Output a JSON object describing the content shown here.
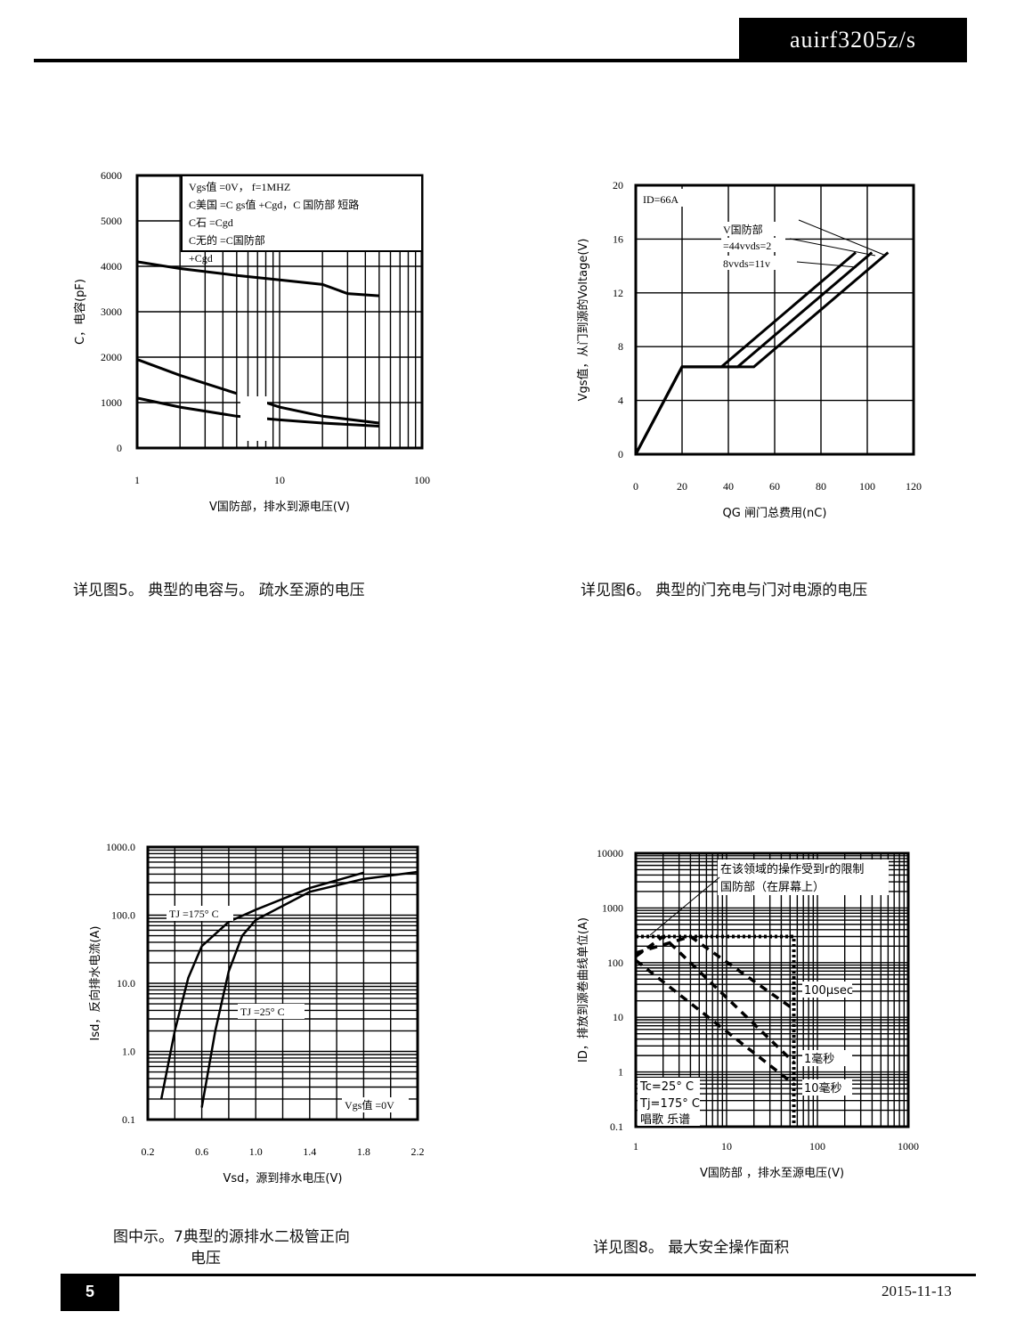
{
  "header": {
    "part_number": "auirf3205z/s"
  },
  "footer": {
    "page": "5",
    "date": "2015-11-13"
  },
  "captions": {
    "fig5": "详见图5。  典型的电容与。  疏水至源的电压",
    "fig6": "详见图6。  典型的门充电与门对电源的电压",
    "fig7_line1": "图中示。7典型的源排水二极管正向",
    "fig7_line2": "电压",
    "fig8": "详见图8。  最大安全操作面积"
  },
  "chart_data": [
    {
      "type": "line",
      "xscale": "log",
      "xlim": [
        1,
        100
      ],
      "ylim": [
        0,
        6000
      ],
      "grid": true,
      "xticks": [
        "1",
        "10",
        "100"
      ],
      "yticks": [
        "0",
        "1000",
        "2000",
        "3000",
        "4000",
        "5000",
        "6000"
      ],
      "xlabel": "V国防部，排水到源电压(V)",
      "ylabel": "C，电容(pF)",
      "legend": [
        "Vgs值 =0V，  f=1MHZ",
        "C美国 =C gs值 +Cgd，C 国防部 短路",
        "C石 =Cgd",
        "C无的 =C国防部",
        "+Cgd"
      ],
      "series": [
        {
          "x": [
            1,
            2,
            5,
            10,
            20,
            30,
            50
          ],
          "y": [
            4100,
            3950,
            3800,
            3700,
            3600,
            3400,
            3350
          ]
        },
        {
          "x": [
            1,
            2,
            5
          ],
          "y": [
            1950,
            1600,
            1200
          ]
        },
        {
          "x": [
            8,
            10,
            20,
            50
          ],
          "y": [
            1000,
            900,
            700,
            550
          ]
        },
        {
          "x": [
            1,
            2,
            5,
            10,
            20,
            50
          ],
          "y": [
            1100,
            900,
            700,
            620,
            550,
            480
          ]
        }
      ]
    },
    {
      "type": "line",
      "xlim": [
        0,
        120
      ],
      "ylim": [
        0,
        20
      ],
      "grid": true,
      "xticks": [
        "0",
        "20",
        "40",
        "60",
        "80",
        "100",
        "120"
      ],
      "yticks": [
        "0",
        "4",
        "8",
        "12",
        "16",
        "20"
      ],
      "xlabel": "QG 闸门总费用(nC)",
      "ylabel": "Vgs值，从门到源的Voltage(V)",
      "annotations": [
        "ID=66A",
        "V国防部",
        "=44vvds=2",
        "8vvds=11v"
      ],
      "series": [
        {
          "x": [
            0,
            20,
            37,
            95
          ],
          "y": [
            0,
            6.5,
            6.5,
            15
          ]
        },
        {
          "x": [
            0,
            20,
            44,
            102
          ],
          "y": [
            0,
            6.5,
            6.5,
            15
          ]
        },
        {
          "x": [
            0,
            20,
            51,
            109
          ],
          "y": [
            0,
            6.5,
            6.5,
            15
          ]
        }
      ]
    },
    {
      "type": "line",
      "xlim": [
        0.2,
        2.2
      ],
      "yscale": "log",
      "ylim": [
        0.1,
        1000
      ],
      "grid": true,
      "xticks": [
        "0.2",
        "0.6",
        "1.0",
        "1.4",
        "1.8",
        "2.2"
      ],
      "yticks": [
        "0.1",
        "1.0",
        "10.0",
        "100.0",
        "1000.0"
      ],
      "xlabel": "Vsd，源到排水电压(V)",
      "ylabel": "Isd，反向排水电流(A)",
      "annotations": [
        "TJ =175° C",
        "TJ =25° C",
        "Vgs值 =0V"
      ],
      "series": [
        {
          "name": "TJ =175° C",
          "x": [
            0.3,
            0.4,
            0.5,
            0.6,
            0.8,
            1.0,
            1.4,
            1.8
          ],
          "y": [
            0.2,
            2,
            12,
            35,
            80,
            120,
            250,
            420
          ]
        },
        {
          "name": "TJ =25° C",
          "x": [
            0.6,
            0.7,
            0.8,
            0.9,
            1.0,
            1.4,
            1.8,
            2.2
          ],
          "y": [
            0.15,
            2,
            15,
            50,
            85,
            220,
            340,
            430
          ]
        }
      ]
    },
    {
      "type": "line",
      "xscale": "log",
      "xlim": [
        1,
        1000
      ],
      "yscale": "log",
      "ylim": [
        0.1,
        10000
      ],
      "grid": true,
      "xticks": [
        "1",
        "10",
        "100",
        "1000"
      ],
      "yticks": [
        "0.1",
        "1",
        "10",
        "100",
        "1000",
        "10000"
      ],
      "xlabel": "V国防部 ，排水至源电压(V)",
      "ylabel": "ID，排放到源卷曲线单位(A)",
      "annotations": [
        "在该领域的操作受到r的限制",
        "国防部（在屏幕上）",
        "100μsec",
        "1毫秒",
        "10毫秒",
        "Tc=25° C",
        "Tj=175° C",
        "唱歌 乐谱"
      ],
      "series": [
        {
          "name": "limit",
          "x": [
            1,
            55,
            55
          ],
          "y": [
            300,
            300,
            0.1
          ]
        },
        {
          "name": "100μsec",
          "x": [
            1,
            4,
            55
          ],
          "y": [
            150,
            300,
            14
          ]
        },
        {
          "name": "1毫秒",
          "x": [
            1,
            2,
            55
          ],
          "y": [
            130,
            300,
            1.5
          ]
        },
        {
          "name": "10毫秒",
          "x": [
            1,
            55
          ],
          "y": [
            110,
            0.6
          ]
        }
      ]
    }
  ]
}
